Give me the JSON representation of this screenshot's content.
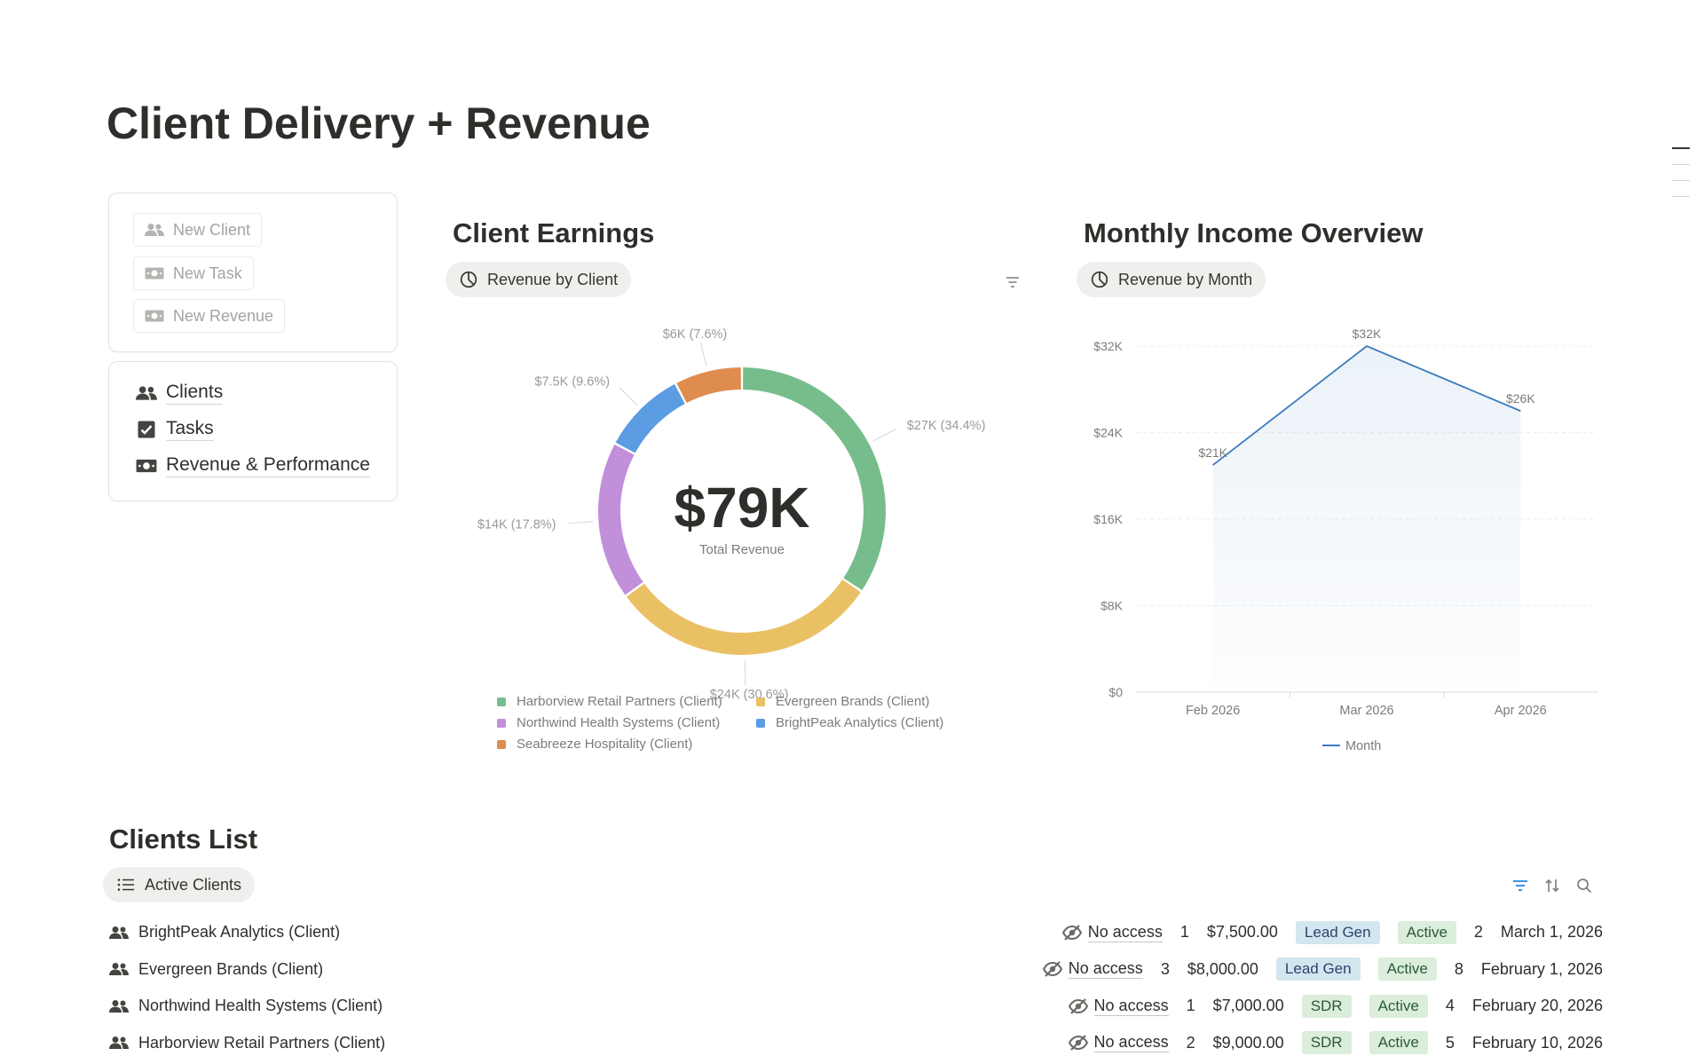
{
  "page": {
    "title": "Client Delivery + Revenue"
  },
  "quick_actions": [
    {
      "label": "New Client",
      "icon": "people-icon"
    },
    {
      "label": "New Task",
      "icon": "money-icon"
    },
    {
      "label": "New Revenue",
      "icon": "money-icon"
    }
  ],
  "nav_links": [
    {
      "label": "Clients",
      "icon": "people-icon"
    },
    {
      "label": "Tasks",
      "icon": "checkbox-icon"
    },
    {
      "label": "Revenue & Performance",
      "icon": "money-icon"
    }
  ],
  "earnings": {
    "title": "Client Earnings",
    "view_label": "Revenue by Client",
    "center_value": "$79K",
    "center_label": "Total Revenue"
  },
  "income": {
    "title": "Monthly Income Overview",
    "view_label": "Revenue by Month"
  },
  "clients_list": {
    "title": "Clients List",
    "view_label": "Active Clients",
    "rows": [
      {
        "name": "BrightPeak Analytics (Client)",
        "access": "No access",
        "count": "1",
        "amount": "$7,500.00",
        "type": "Lead Gen",
        "type_color": "blue",
        "status": "Active",
        "tasks": "2",
        "date": "March 1, 2026"
      },
      {
        "name": "Evergreen Brands (Client)",
        "access": "No access",
        "count": "3",
        "amount": "$8,000.00",
        "type": "Lead Gen",
        "type_color": "blue",
        "status": "Active",
        "tasks": "8",
        "date": "February 1, 2026"
      },
      {
        "name": "Northwind Health Systems (Client)",
        "access": "No access",
        "count": "1",
        "amount": "$7,000.00",
        "type": "SDR",
        "type_color": "green",
        "status": "Active",
        "tasks": "4",
        "date": "February 20, 2026"
      },
      {
        "name": "Harborview Retail Partners (Client)",
        "access": "No access",
        "count": "2",
        "amount": "$9,000.00",
        "type": "SDR",
        "type_color": "green",
        "status": "Active",
        "tasks": "5",
        "date": "February 10, 2026"
      }
    ]
  },
  "colors": {
    "harborview": "#77bd8b",
    "evergreen": "#e9c164",
    "northwind": "#c28fdb",
    "brightpeak": "#5c9ce3",
    "seabreeze": "#df8c4f",
    "line": "#3a7bbd"
  },
  "chart_data": [
    {
      "type": "pie",
      "title": "Client Earnings",
      "center_value": "$79K",
      "center_label": "Total Revenue",
      "slices": [
        {
          "name": "Harborview Retail Partners (Client)",
          "value": 27000,
          "label": "$27K (34.4%)",
          "color": "#77bd8b"
        },
        {
          "name": "Evergreen Brands (Client)",
          "value": 24000,
          "label": "$24K (30.6%)",
          "color": "#e9c164"
        },
        {
          "name": "Northwind Health Systems (Client)",
          "value": 14000,
          "label": "$14K (17.8%)",
          "color": "#c28fdb"
        },
        {
          "name": "BrightPeak Analytics (Client)",
          "value": 7500,
          "label": "$7.5K (9.6%)",
          "color": "#5c9ce3"
        },
        {
          "name": "Seabreeze Hospitality (Client)",
          "value": 6000,
          "label": "$6K (7.6%)",
          "color": "#df8c4f"
        }
      ],
      "legend_position": "bottom"
    },
    {
      "type": "area",
      "title": "Monthly Income Overview",
      "categories": [
        "Feb 2026",
        "Mar 2026",
        "Apr 2026"
      ],
      "series": [
        {
          "name": "Month",
          "values": [
            21000,
            32000,
            26000
          ],
          "labels": [
            "$21K",
            "$32K",
            "$26K"
          ],
          "color": "#3a7bbd"
        }
      ],
      "yticks": [
        "$0",
        "$8K",
        "$16K",
        "$24K",
        "$32K"
      ],
      "ytick_values": [
        0,
        8000,
        16000,
        24000,
        32000
      ],
      "ylim": [
        0,
        32000
      ],
      "grid": true,
      "legend_position": "bottom"
    }
  ]
}
